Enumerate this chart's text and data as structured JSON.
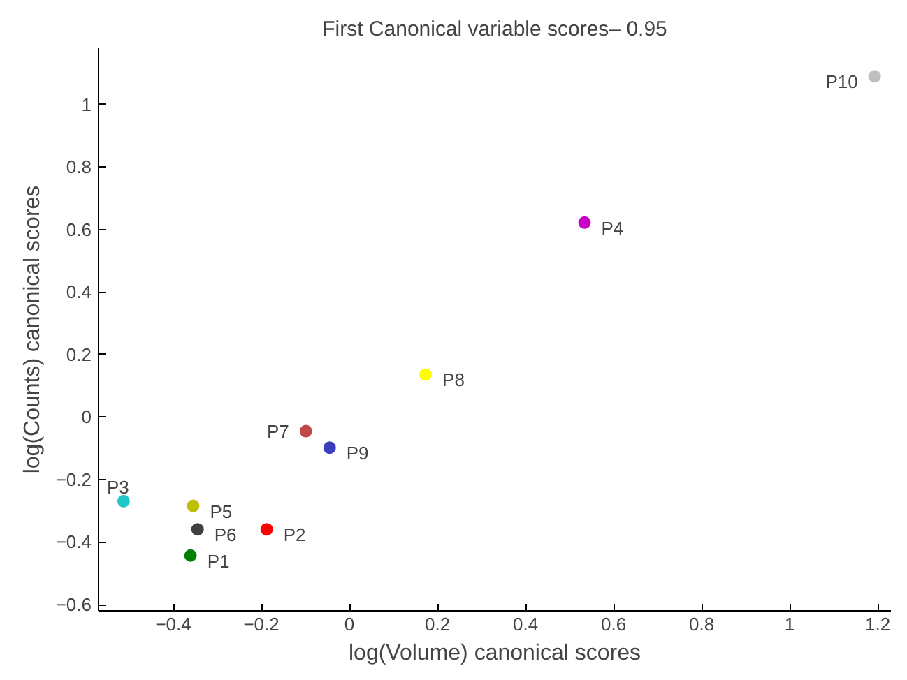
{
  "chart_data": {
    "type": "scatter",
    "title": "First Canonical variable scores– 0.95",
    "xlabel": "log(Volume) canonical scores",
    "ylabel": "log(Counts) canonical scores",
    "xlim": [
      -0.57,
      1.23
    ],
    "ylim": [
      -0.62,
      1.18
    ],
    "xticks": [
      {
        "value": -0.4,
        "label": "−0.4"
      },
      {
        "value": -0.2,
        "label": "−0.2"
      },
      0,
      0.2,
      0.4,
      0.6,
      0.8,
      1,
      1.2
    ],
    "yticks": [
      {
        "value": -0.6,
        "label": "−0.6"
      },
      {
        "value": -0.4,
        "label": "−0.4"
      },
      {
        "value": -0.2,
        "label": "−0.2"
      },
      0,
      0.2,
      0.4,
      0.6,
      0.8,
      1
    ],
    "grid": false,
    "marker": "circle",
    "series": [
      {
        "name": "P1",
        "color": "#008000",
        "x": [
          -0.361
        ],
        "values": [
          -0.443
        ]
      },
      {
        "name": "P2",
        "color": "#ff0000",
        "x": [
          -0.188
        ],
        "values": [
          -0.359
        ]
      },
      {
        "name": "P3",
        "color": "#1ec8c8",
        "x": [
          -0.513
        ],
        "values": [
          -0.269
        ]
      },
      {
        "name": "P4",
        "color": "#c800c8",
        "x": [
          0.534
        ],
        "values": [
          0.622
        ]
      },
      {
        "name": "P5",
        "color": "#bfbf00",
        "x": [
          -0.355
        ],
        "values": [
          -0.284
        ]
      },
      {
        "name": "P6",
        "color": "#404040",
        "x": [
          -0.345
        ],
        "values": [
          -0.359
        ]
      },
      {
        "name": "P7",
        "color": "#bf4a4a",
        "x": [
          -0.099
        ],
        "values": [
          -0.045
        ]
      },
      {
        "name": "P8",
        "color": "#ffff00",
        "x": [
          0.173
        ],
        "values": [
          0.136
        ]
      },
      {
        "name": "P9",
        "color": "#3d3dbf",
        "x": [
          -0.045
        ],
        "values": [
          -0.098
        ]
      },
      {
        "name": "P10",
        "color": "#c0c0c0",
        "x": [
          1.193
        ],
        "values": [
          1.09
        ]
      }
    ]
  }
}
